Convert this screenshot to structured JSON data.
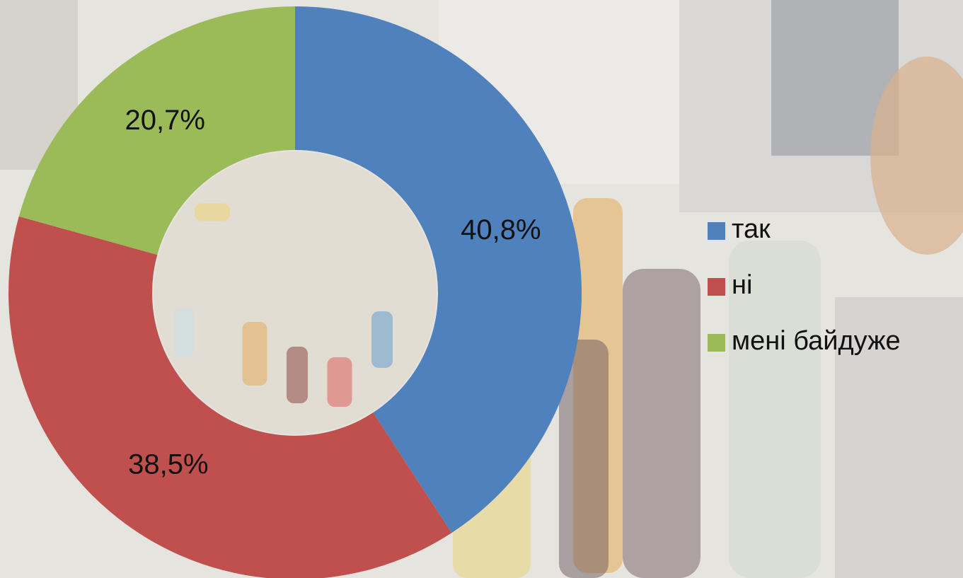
{
  "chart_data": {
    "type": "doughnut",
    "categories": [
      "так",
      "ні",
      "мені байдуже"
    ],
    "values": [
      40.8,
      38.5,
      20.7
    ],
    "value_labels": [
      "40,8%",
      "38,5%",
      "20,7%"
    ],
    "colors": [
      "#4f81bd",
      "#c0504d",
      "#9bbb59"
    ],
    "legend": "right"
  }
}
